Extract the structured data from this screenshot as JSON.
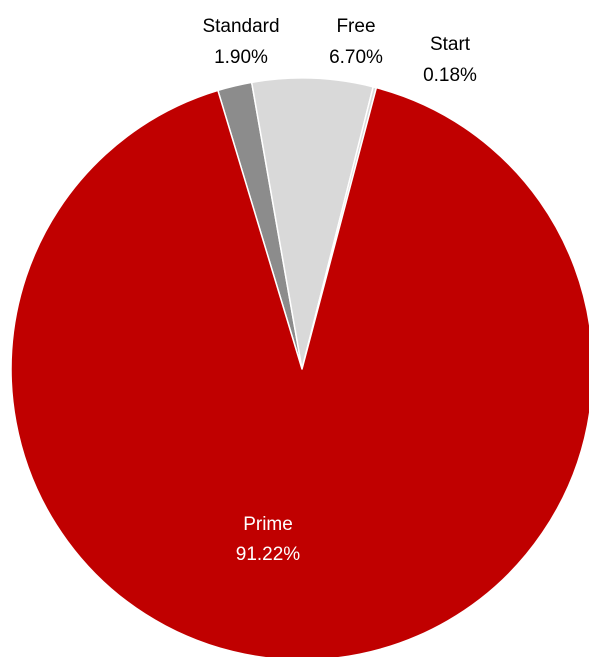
{
  "chart_data": {
    "type": "pie",
    "categories": [
      "Standard",
      "Free",
      "Start",
      "Prime"
    ],
    "values": [
      1.9,
      6.7,
      0.18,
      91.22
    ],
    "value_labels": [
      "1.90%",
      "6.70%",
      "0.18%",
      "91.22%"
    ],
    "colors": [
      "#8c8c8c",
      "#d9d9d9",
      "#d9d9d9",
      "#c00000"
    ],
    "label_colors": [
      "#000000",
      "#000000",
      "#000000",
      "#ffffff"
    ],
    "title": "",
    "legend": "none"
  }
}
